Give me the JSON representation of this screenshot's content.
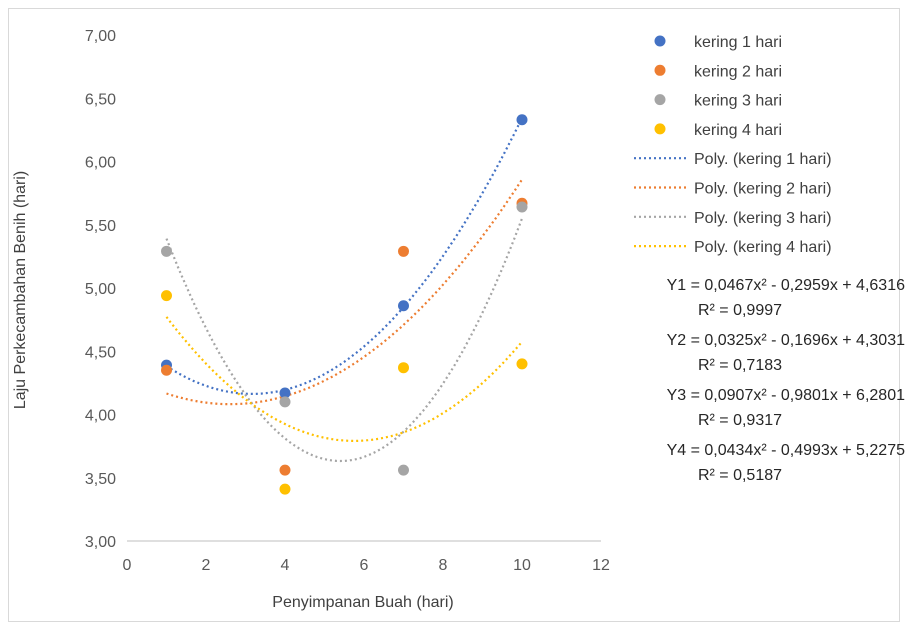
{
  "chart_data": {
    "type": "scatter",
    "xlabel": "Penyimpanan Buah (hari)",
    "ylabel": "Laju Perkecambahan Benih (hari)",
    "xlim": [
      0,
      12
    ],
    "ylim": [
      3.0,
      7.0
    ],
    "x_ticks": [
      "0",
      "2",
      "4",
      "6",
      "8",
      "10",
      "12"
    ],
    "y_ticks": [
      "3,00",
      "3,50",
      "4,00",
      "4,50",
      "5,00",
      "5,50",
      "6,00",
      "6,50",
      "7,00"
    ],
    "grid": false,
    "legend_position": "right",
    "series": [
      {
        "name": "kering 1 hari",
        "color": "#4472c4",
        "x": [
          1,
          4,
          7,
          10
        ],
        "y": [
          4.39,
          4.17,
          4.86,
          6.33
        ]
      },
      {
        "name": "kering 2 hari",
        "color": "#ed7d31",
        "x": [
          1,
          4,
          7,
          10
        ],
        "y": [
          4.35,
          3.56,
          5.29,
          5.67
        ]
      },
      {
        "name": "kering 3 hari",
        "color": "#a5a5a5",
        "x": [
          1,
          4,
          7,
          10
        ],
        "y": [
          5.29,
          4.1,
          3.56,
          5.64
        ]
      },
      {
        "name": "kering 4 hari",
        "color": "#ffc000",
        "x": [
          1,
          4,
          7,
          10
        ],
        "y": [
          4.94,
          3.41,
          4.37,
          4.4
        ]
      }
    ],
    "trendlines": [
      {
        "name": "Poly. (kering 1 hari)",
        "color": "#4472c4",
        "coefficients": [
          0.0467,
          -0.2959,
          4.6316
        ],
        "x_range": [
          1,
          10
        ]
      },
      {
        "name": "Poly. (kering 2 hari)",
        "color": "#ed7d31",
        "coefficients": [
          0.0325,
          -0.1696,
          4.3031
        ],
        "x_range": [
          1,
          10
        ]
      },
      {
        "name": "Poly. (kering 3 hari)",
        "color": "#a5a5a5",
        "coefficients": [
          0.0907,
          -0.9801,
          6.2801
        ],
        "x_range": [
          1,
          10
        ]
      },
      {
        "name": "Poly. (kering 4 hari)",
        "color": "#ffc000",
        "coefficients": [
          0.0434,
          -0.4993,
          5.2275
        ],
        "x_range": [
          1,
          10
        ]
      }
    ],
    "equations": [
      {
        "eq": "Y1 = 0,0467x² - 0,2959x + 4,6316",
        "r2": "R² = 0,9997"
      },
      {
        "eq": "Y2 = 0,0325x² - 0,1696x + 4,3031",
        "r2": "R² = 0,7183"
      },
      {
        "eq": "Y3 = 0,0907x² - 0,9801x + 6,2801",
        "r2": "R² = 0,9317"
      },
      {
        "eq": "Y4 = 0,0434x² - 0,4993x + 5,2275",
        "r2": "R² = 0,5187"
      }
    ]
  }
}
